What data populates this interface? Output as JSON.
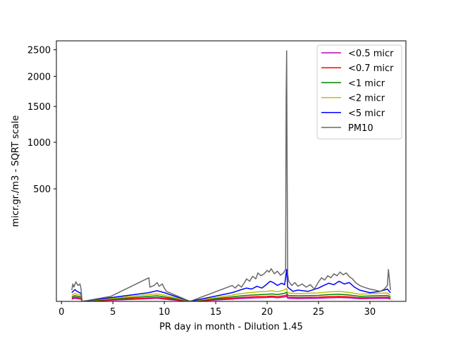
{
  "chart_data": {
    "type": "line",
    "title": "",
    "xlabel": "PR day in month - Dilution 1.45",
    "ylabel": "micr.gr./m3 - SQRT scale",
    "xlim": [
      -0.5,
      33.5
    ],
    "ylim": [
      0,
      2680
    ],
    "y_scale": "sqrt",
    "x_ticks": [
      0,
      5,
      10,
      15,
      20,
      25,
      30
    ],
    "x_tick_labels": [
      "0",
      "5",
      "10",
      "15",
      "20",
      "25",
      "30"
    ],
    "y_ticks": [
      500,
      1000,
      1500,
      2000,
      2500
    ],
    "y_tick_labels": [
      "500",
      "1000",
      "1500",
      "2000",
      "2500"
    ],
    "grid": false,
    "legend_position": "top-right",
    "series": [
      {
        "name": "<0.5 micr",
        "color": "#bf00bf",
        "x": [
          1.0,
          1.3,
          1.5,
          1.9,
          2.0,
          8.5,
          9.3,
          10.0,
          12.5,
          16.6,
          17.0,
          18.0,
          19.0,
          20.0,
          20.5,
          21.0,
          21.7,
          21.9,
          22.0,
          23.0,
          25.0,
          26.0,
          27.0,
          28.0,
          29.0,
          31.7,
          32.0
        ],
        "y": [
          0.2,
          0.4,
          0.3,
          0.2,
          0.0,
          0.3,
          0.4,
          0.2,
          0.0,
          0.2,
          0.3,
          0.4,
          0.5,
          0.6,
          0.7,
          0.5,
          0.8,
          1.0,
          0.4,
          0.3,
          0.4,
          0.5,
          0.6,
          0.5,
          0.3,
          0.4,
          0.2
        ]
      },
      {
        "name": "<0.7 micr",
        "color": "#ff0000",
        "x": [
          1.0,
          1.3,
          1.5,
          1.9,
          2.0,
          8.5,
          9.3,
          10.0,
          12.5,
          16.6,
          17.0,
          18.0,
          19.0,
          20.0,
          20.5,
          21.0,
          21.7,
          21.9,
          22.0,
          23.0,
          25.0,
          26.0,
          27.0,
          28.0,
          29.0,
          31.7,
          32.0
        ],
        "y": [
          0.4,
          0.7,
          0.6,
          0.4,
          0.0,
          0.5,
          0.6,
          0.4,
          0.0,
          0.4,
          0.5,
          0.7,
          0.9,
          1.0,
          1.1,
          0.9,
          1.3,
          1.7,
          0.7,
          0.6,
          0.7,
          0.9,
          1.0,
          0.8,
          0.5,
          0.7,
          0.4
        ]
      },
      {
        "name": "<1 micr",
        "color": "#008000",
        "x": [
          1.0,
          1.3,
          1.5,
          1.9,
          2.0,
          8.5,
          9.3,
          10.0,
          12.5,
          16.6,
          17.0,
          18.0,
          19.0,
          20.0,
          20.5,
          21.0,
          21.7,
          21.9,
          22.0,
          23.0,
          25.0,
          26.0,
          27.0,
          28.0,
          29.0,
          31.7,
          32.0
        ],
        "y": [
          0.8,
          1.3,
          1.1,
          0.8,
          0.0,
          1.0,
          1.2,
          0.8,
          0.0,
          0.8,
          1.0,
          1.4,
          1.7,
          2.0,
          2.2,
          1.8,
          2.6,
          3.3,
          1.4,
          1.2,
          1.4,
          1.8,
          2.0,
          1.6,
          1.0,
          1.4,
          0.8
        ]
      },
      {
        "name": "<2 micr",
        "color": "#bfbf00",
        "x": [
          1.0,
          1.3,
          1.5,
          1.9,
          2.0,
          8.5,
          9.3,
          10.0,
          12.5,
          16.6,
          17.0,
          18.0,
          19.0,
          20.0,
          20.5,
          21.0,
          21.7,
          21.9,
          22.0,
          23.0,
          25.0,
          26.0,
          27.0,
          28.0,
          29.0,
          31.7,
          32.0
        ],
        "y": [
          1.5,
          2.5,
          2.0,
          1.5,
          0.0,
          1.8,
          2.2,
          1.5,
          0.0,
          1.5,
          2.0,
          2.8,
          3.5,
          4.0,
          4.5,
          3.6,
          5.2,
          6.5,
          2.8,
          2.4,
          2.8,
          3.6,
          4.0,
          3.2,
          2.0,
          2.8,
          1.5
        ]
      },
      {
        "name": "<5 micr",
        "color": "#0000ff",
        "x": [
          1.0,
          1.3,
          1.5,
          1.9,
          2.0,
          8.5,
          9.3,
          10.0,
          12.5,
          16.6,
          17.0,
          17.5,
          18.0,
          18.5,
          19.0,
          19.5,
          20.0,
          20.3,
          20.6,
          21.0,
          21.4,
          21.7,
          21.9,
          22.0,
          22.5,
          23.0,
          24.0,
          25.0,
          25.5,
          26.0,
          26.5,
          27.0,
          27.5,
          28.0,
          28.5,
          29.0,
          30.0,
          31.0,
          31.7,
          32.0
        ],
        "y": [
          3.0,
          5.5,
          4.0,
          2.5,
          0.0,
          3.0,
          4.5,
          3.0,
          0.0,
          3.0,
          4.0,
          5.5,
          7.0,
          6.0,
          9.0,
          7.0,
          12.0,
          16.0,
          14.0,
          10.0,
          13.0,
          11.0,
          40.0,
          8.0,
          4.0,
          5.0,
          4.0,
          7.0,
          10.0,
          13.0,
          11.0,
          16.0,
          12.0,
          14.0,
          8.0,
          5.0,
          3.0,
          4.0,
          6.0,
          3.0
        ]
      },
      {
        "name": "PM10",
        "color": "#696969",
        "x": [
          1.0,
          1.1,
          1.2,
          1.4,
          1.6,
          1.8,
          1.9,
          2.0,
          4.8,
          8.5,
          8.6,
          9.0,
          9.3,
          9.5,
          9.8,
          10.0,
          10.2,
          12.5,
          16.6,
          16.9,
          17.2,
          17.5,
          17.8,
          18.0,
          18.3,
          18.6,
          18.9,
          19.1,
          19.4,
          19.7,
          20.0,
          20.2,
          20.4,
          20.7,
          21.0,
          21.3,
          21.6,
          21.8,
          21.85,
          21.9,
          21.95,
          22.0,
          22.1,
          22.4,
          22.7,
          23.0,
          23.4,
          23.8,
          24.2,
          24.6,
          25.0,
          25.3,
          25.6,
          25.9,
          26.2,
          26.5,
          26.8,
          27.1,
          27.4,
          27.7,
          28.0,
          28.3,
          28.6,
          29.0,
          29.4,
          30.0,
          30.5,
          31.0,
          31.4,
          31.7,
          31.8,
          32.0
        ],
        "y": [
          5.0,
          12.0,
          8.0,
          15.0,
          10.0,
          12.0,
          6.0,
          0.0,
          1.0,
          22.0,
          8.0,
          10.0,
          14.0,
          9.0,
          12.0,
          7.0,
          4.0,
          0.0,
          10.0,
          7.0,
          11.0,
          8.0,
          14.0,
          20.0,
          16.0,
          25.0,
          20.0,
          32.0,
          26.0,
          30.0,
          38.0,
          34.0,
          42.0,
          30.0,
          36.0,
          27.0,
          32.0,
          40.0,
          1650.0,
          2480.0,
          600.0,
          30.0,
          16.0,
          10.0,
          14.0,
          9.0,
          12.0,
          8.0,
          11.0,
          6.0,
          15.0,
          22.0,
          18.0,
          26.0,
          22.0,
          30.0,
          26.0,
          34.0,
          28.0,
          32.0,
          24.0,
          20.0,
          14.0,
          10.0,
          8.0,
          6.0,
          5.0,
          4.0,
          6.0,
          10.0,
          40.0,
          5.0
        ]
      }
    ]
  }
}
